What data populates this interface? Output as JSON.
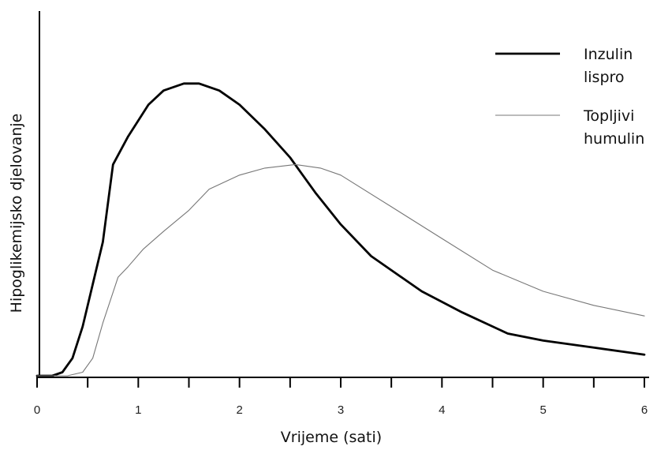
{
  "chart_data": {
    "type": "line",
    "title": "",
    "xlabel": "Vrijeme (sati)",
    "ylabel": "Hipoglikemijsko djelovanje",
    "xlim": [
      0,
      6
    ],
    "ylim": [
      0,
      1
    ],
    "x_ticks": [
      0,
      1,
      2,
      3,
      4,
      5,
      6
    ],
    "x_minor_step": 0.5,
    "y_ticks_shown": false,
    "grid": false,
    "legend_position": "top-right",
    "series": [
      {
        "name_lines": [
          "Inzulin",
          "lispro"
        ],
        "stroke": "#000000",
        "line_style": "thick",
        "points": [
          [
            0,
            0.0
          ],
          [
            0.15,
            0.0
          ],
          [
            0.25,
            0.01
          ],
          [
            0.35,
            0.05
          ],
          [
            0.45,
            0.14
          ],
          [
            0.55,
            0.26
          ],
          [
            0.65,
            0.38
          ],
          [
            0.75,
            0.6
          ],
          [
            0.9,
            0.68
          ],
          [
            1.1,
            0.77
          ],
          [
            1.25,
            0.81
          ],
          [
            1.45,
            0.83
          ],
          [
            1.6,
            0.83
          ],
          [
            1.8,
            0.81
          ],
          [
            2.0,
            0.77
          ],
          [
            2.25,
            0.7
          ],
          [
            2.5,
            0.62
          ],
          [
            2.75,
            0.52
          ],
          [
            3.0,
            0.43
          ],
          [
            3.3,
            0.34
          ],
          [
            3.8,
            0.24
          ],
          [
            4.2,
            0.18
          ],
          [
            4.65,
            0.12
          ],
          [
            5.0,
            0.1
          ],
          [
            5.5,
            0.08
          ],
          [
            6.0,
            0.06
          ]
        ]
      },
      {
        "name_lines": [
          "Topljivi",
          "humulin"
        ],
        "stroke": "#777777",
        "line_style": "thin",
        "points": [
          [
            0,
            0.0
          ],
          [
            0.3,
            0.0
          ],
          [
            0.45,
            0.01
          ],
          [
            0.55,
            0.05
          ],
          [
            0.65,
            0.15
          ],
          [
            0.8,
            0.28
          ],
          [
            0.9,
            0.31
          ],
          [
            1.05,
            0.36
          ],
          [
            1.25,
            0.41
          ],
          [
            1.5,
            0.47
          ],
          [
            1.7,
            0.53
          ],
          [
            2.0,
            0.57
          ],
          [
            2.25,
            0.59
          ],
          [
            2.55,
            0.6
          ],
          [
            2.8,
            0.59
          ],
          [
            3.0,
            0.57
          ],
          [
            3.5,
            0.48
          ],
          [
            4.0,
            0.39
          ],
          [
            4.5,
            0.3
          ],
          [
            5.0,
            0.24
          ],
          [
            5.5,
            0.2
          ],
          [
            6.0,
            0.17
          ]
        ]
      }
    ]
  }
}
